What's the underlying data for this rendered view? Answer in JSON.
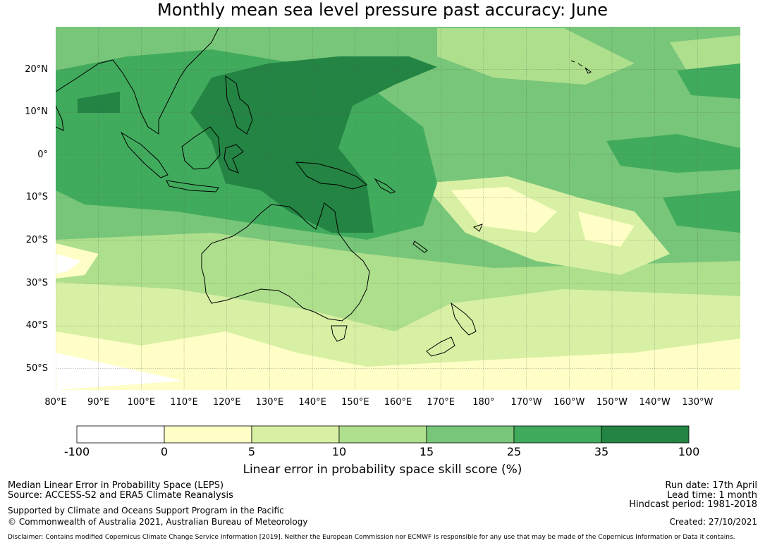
{
  "title": "Monthly mean sea level pressure past accuracy: June",
  "map": {
    "lat_labels": [
      "20°N",
      "10°N",
      "0°",
      "10°S",
      "20°S",
      "30°S",
      "40°S",
      "50°S"
    ],
    "lat_values": [
      20,
      10,
      0,
      -10,
      -20,
      -30,
      -40,
      -50
    ],
    "lon_labels": [
      "80°E",
      "90°E",
      "100°E",
      "110°E",
      "120°E",
      "130°E",
      "140°E",
      "150°E",
      "160°E",
      "170°E",
      "180°",
      "170°W",
      "160°W",
      "150°W",
      "140°W",
      "130°W"
    ],
    "lon_values": [
      80,
      90,
      100,
      110,
      120,
      130,
      140,
      150,
      160,
      170,
      180,
      190,
      200,
      210,
      220,
      230
    ],
    "lon_range": [
      80,
      240
    ],
    "lat_range": [
      -55,
      30
    ]
  },
  "colorbar": {
    "tick_labels": [
      "-100",
      "0",
      "5",
      "10",
      "15",
      "25",
      "35",
      "100"
    ],
    "colors": [
      "#ffffff",
      "#fefec6",
      "#d8f0a4",
      "#aedf8d",
      "#78c679",
      "#41ab5d",
      "#238443"
    ],
    "label": "Linear error in probability space skill score (%)"
  },
  "footer": {
    "left_line1": "Median Linear Error in Probability Space (LEPS)",
    "left_line2": "Source: ACCESS-S2 and ERA5 Climate Reanalysis",
    "left_line3": "Supported by Climate and Oceans Support Program in the Pacific",
    "left_line4": "© Commonwealth of Australia 2021, Australian Bureau of Meteorology",
    "right_line1": "Run date: 17th April",
    "right_line2": "Lead time: 1 month",
    "right_line3": "Hindcast period: 1981-2018",
    "right_line4": "Created: 27/10/2021",
    "disclaimer": "Disclaimer: Contains modified Copernicus Climate Change Service Information [2019]. Neither the European Commission nor ECMWF is responsible for any use that may be made of the Copernicus Information or Data it contains."
  }
}
